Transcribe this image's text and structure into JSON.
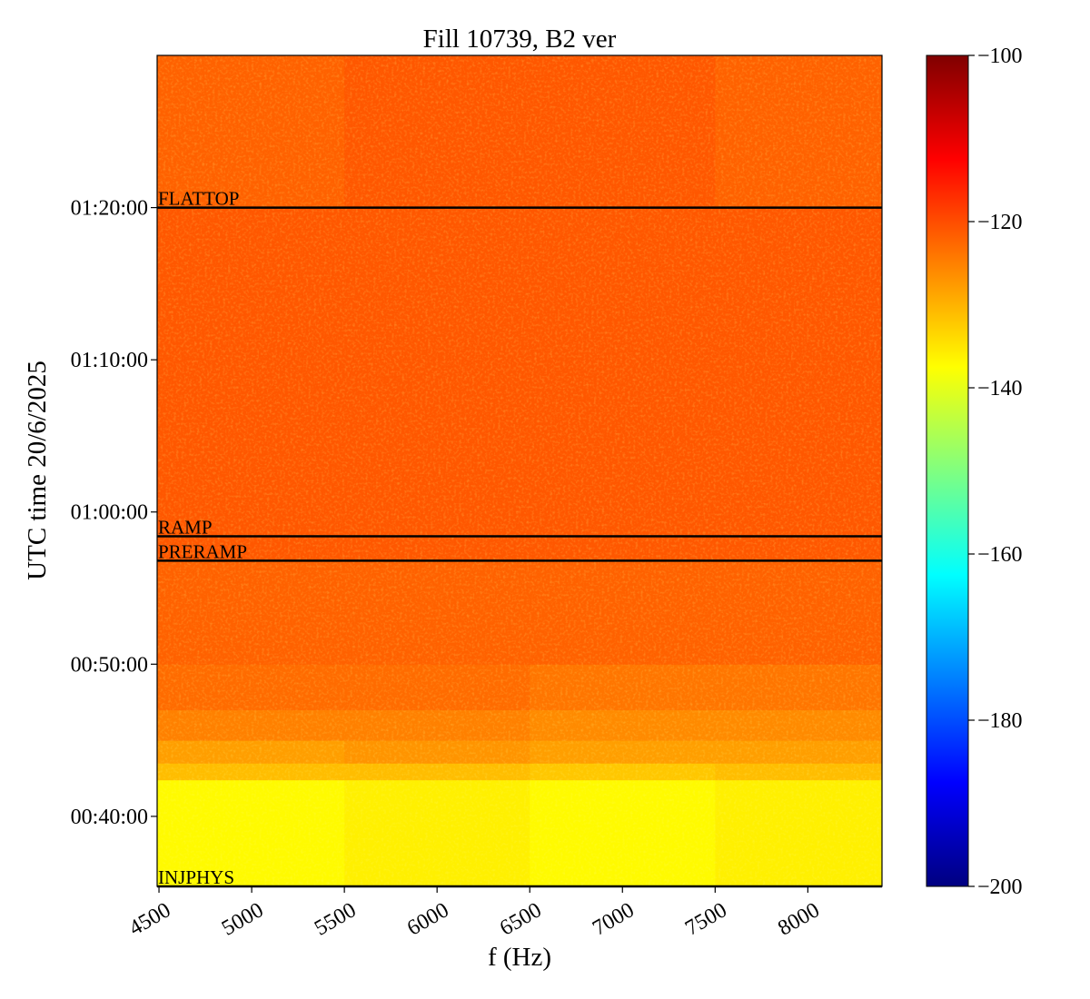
{
  "chart_data": {
    "type": "heatmap",
    "title": "Fill 10739, B2 ver",
    "x_label": "f (Hz)",
    "y_label": "UTC time 20/6/2025",
    "colormap": "jet",
    "x_edges": [
      4490,
      5500,
      6500,
      7500,
      8400
    ],
    "y_edges": [
      35.4,
      42.4,
      43.5,
      45,
      47,
      50,
      56.8,
      60,
      70,
      80,
      90
    ],
    "z": [
      [
        -137,
        -136,
        -137,
        -136
      ],
      [
        -131,
        -131,
        -132,
        -131
      ],
      [
        -128,
        -127,
        -128,
        -128
      ],
      [
        -125,
        -125,
        -126,
        -126
      ],
      [
        -123,
        -123,
        -124,
        -124
      ],
      [
        -122,
        -122,
        -122,
        -122
      ],
      [
        -121,
        -121,
        -121,
        -121
      ],
      [
        -121,
        -121,
        -121,
        -121
      ],
      [
        -121,
        -121,
        -121,
        -121
      ],
      [
        -122,
        -121,
        -121,
        -122
      ]
    ],
    "xlim": [
      4490,
      8400
    ],
    "xticks": [
      4500,
      5000,
      5500,
      6000,
      6500,
      7000,
      7500,
      8000
    ],
    "ylim": [
      35.4,
      90
    ],
    "yticks": [
      {
        "value": 40,
        "label": "00:40:00"
      },
      {
        "value": 50,
        "label": "00:50:00"
      },
      {
        "value": 60,
        "label": "01:00:00"
      },
      {
        "value": 70,
        "label": "01:10:00"
      },
      {
        "value": 80,
        "label": "01:20:00"
      }
    ],
    "clim": [
      -200,
      -100
    ],
    "cticks": [
      {
        "value": -200,
        "label": "−200"
      },
      {
        "value": -180,
        "label": "−180"
      },
      {
        "value": -160,
        "label": "−160"
      },
      {
        "value": -140,
        "label": "−140"
      },
      {
        "value": -120,
        "label": "−120"
      },
      {
        "value": -100,
        "label": "−100"
      }
    ],
    "events": [
      {
        "label": "FLATTOP",
        "time": 80
      },
      {
        "label": "RAMP",
        "time": 58.4
      },
      {
        "label": "PRERAMP",
        "time": 56.8
      },
      {
        "label": "INJPHYS",
        "time": 35.4
      }
    ],
    "event_color": "#000000"
  }
}
